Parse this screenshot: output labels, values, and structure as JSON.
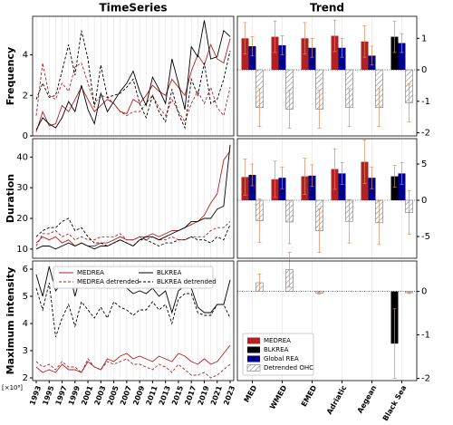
{
  "chart_data": [
    {
      "type": "line",
      "title": "TimeSeries",
      "ylabel": "Frequency",
      "x": [
        1993,
        1994,
        1995,
        1996,
        1997,
        1998,
        1999,
        2000,
        2001,
        2002,
        2003,
        2004,
        2005,
        2006,
        2007,
        2008,
        2009,
        2010,
        2011,
        2012,
        2013,
        2014,
        2015,
        2016,
        2017,
        2018,
        2019,
        2020,
        2021,
        2022,
        2023
      ],
      "series": [
        {
          "color": "#b22222",
          "linestyle": "solid",
          "values": [
            0.2,
            1.2,
            0.5,
            0.6,
            1.5,
            1.2,
            1.8,
            2.4,
            1.8,
            1.2,
            1.5,
            1.8,
            1.6,
            1.2,
            1.1,
            1.8,
            1.6,
            2.0,
            2.5,
            2.2,
            2.0,
            2.8,
            2.4,
            2.0,
            3.2,
            4.0,
            3.5,
            4.5,
            3.8,
            3.6,
            4.8
          ]
        },
        {
          "color": "#b22222",
          "linestyle": "dashed",
          "values": [
            1.0,
            3.6,
            2.0,
            1.8,
            2.6,
            2.2,
            3.4,
            3.6,
            2.6,
            1.6,
            2.0,
            1.9,
            1.6,
            1.2,
            1.0,
            1.2,
            1.2,
            1.6,
            2.0,
            1.4,
            1.0,
            1.8,
            1.2,
            0.7,
            1.6,
            2.2,
            1.6,
            2.4,
            1.4,
            1.0,
            2.4
          ]
        },
        {
          "color": "#000000",
          "linestyle": "solid",
          "values": [
            0.3,
            0.9,
            0.6,
            0.4,
            0.9,
            1.7,
            1.2,
            2.5,
            1.3,
            0.6,
            2.1,
            1.2,
            1.7,
            2.2,
            2.6,
            3.2,
            2.2,
            1.5,
            2.9,
            2.3,
            1.6,
            3.8,
            2.6,
            1.3,
            4.4,
            3.9,
            5.7,
            3.8,
            3.9,
            5.2,
            4.9
          ]
        },
        {
          "color": "#000000",
          "linestyle": "dashed",
          "values": [
            1.8,
            2.6,
            1.9,
            2.0,
            3.2,
            4.5,
            3.0,
            5.2,
            3.8,
            1.4,
            3.5,
            1.9,
            2.0,
            2.1,
            2.4,
            2.8,
            1.6,
            0.9,
            2.0,
            1.2,
            0.7,
            2.3,
            1.1,
            0.4,
            2.8,
            2.0,
            3.6,
            1.6,
            1.8,
            2.8,
            4.2
          ]
        }
      ],
      "ylim": [
        0,
        5.9
      ],
      "yticks": [
        0,
        2,
        4
      ],
      "grid": true
    },
    {
      "type": "bar",
      "title": "Trend",
      "series": [
        {
          "color": "#b22222",
          "values": [
            1.0,
            1.05,
            1.0,
            1.08,
            0.9,
            null
          ],
          "errors": [
            0.5,
            0.5,
            0.5,
            0.5,
            0.5,
            null
          ]
        },
        {
          "color": "#000000",
          "values": [
            null,
            null,
            null,
            null,
            null,
            1.05
          ],
          "errors": [
            null,
            null,
            null,
            null,
            null,
            0.5
          ]
        },
        {
          "color": "#00008b",
          "values": [
            0.75,
            0.78,
            0.7,
            0.7,
            0.45,
            0.85
          ],
          "errors": [
            0.3,
            0.3,
            0.3,
            0.3,
            0.3,
            0.3
          ]
        },
        {
          "color": "#ffffff",
          "hatch": true,
          "values": [
            -1.2,
            -1.25,
            -1.25,
            -1.2,
            -1.2,
            -1.05
          ],
          "errors": [
            0.6,
            0.6,
            0.6,
            0.6,
            0.6,
            0.6
          ]
        }
      ],
      "ylim": [
        -2.1,
        1.7
      ],
      "yticks": [
        -2,
        -1,
        0,
        1
      ],
      "grid": true
    },
    {
      "type": "line",
      "ylabel": "Duration",
      "x": [
        1993,
        1994,
        1995,
        1996,
        1997,
        1998,
        1999,
        2000,
        2001,
        2002,
        2003,
        2004,
        2005,
        2006,
        2007,
        2008,
        2009,
        2010,
        2011,
        2012,
        2013,
        2014,
        2015,
        2016,
        2017,
        2018,
        2019,
        2020,
        2021,
        2022,
        2023
      ],
      "series": [
        {
          "color": "#b22222",
          "linestyle": "solid",
          "values": [
            12,
            14,
            13,
            14,
            12,
            13,
            11,
            12,
            11,
            11,
            12,
            12,
            13,
            14,
            13,
            13,
            14,
            14,
            15,
            14,
            15,
            16,
            16,
            17,
            18,
            19,
            21,
            25,
            28,
            39,
            42
          ]
        },
        {
          "color": "#b22222",
          "linestyle": "dashed",
          "values": [
            11,
            15,
            15,
            16,
            14,
            15,
            13,
            14,
            13,
            13,
            14,
            14,
            14,
            15,
            13,
            13,
            14,
            13,
            14,
            13,
            13,
            14,
            13,
            13,
            14,
            14,
            14,
            16,
            17,
            17,
            19
          ]
        },
        {
          "color": "#000000",
          "linestyle": "solid",
          "values": [
            10,
            11,
            11,
            10,
            11,
            12,
            11,
            12,
            11,
            10,
            11,
            11,
            12,
            13,
            12,
            11,
            13,
            14,
            14,
            13,
            14,
            15,
            16,
            17,
            19,
            19,
            20,
            20,
            23,
            24,
            44
          ]
        },
        {
          "color": "#000000",
          "linestyle": "dashed",
          "values": [
            14,
            16,
            17,
            17,
            19,
            20,
            16,
            17,
            14,
            12,
            12,
            11,
            12,
            13,
            12,
            11,
            13,
            13,
            12,
            11,
            12,
            12,
            13,
            13,
            14,
            13,
            13,
            12,
            14,
            13,
            18
          ]
        }
      ],
      "ylim": [
        7,
        46
      ],
      "yticks": [
        10,
        20,
        30,
        40
      ],
      "grid": true
    },
    {
      "type": "bar",
      "series": [
        {
          "color": "#b22222",
          "values": [
            3.2,
            2.9,
            3.3,
            4.3,
            5.3,
            null
          ],
          "errors": [
            2.5,
            2.5,
            2.5,
            2.8,
            3.0,
            null
          ]
        },
        {
          "color": "#000000",
          "values": [
            null,
            null,
            null,
            null,
            null,
            3.3
          ],
          "errors": [
            null,
            null,
            null,
            null,
            null,
            1.5
          ]
        },
        {
          "color": "#00008b",
          "values": [
            3.5,
            3.1,
            3.4,
            3.7,
            3.1,
            3.7
          ],
          "errors": [
            1.5,
            1.5,
            1.5,
            1.5,
            1.5,
            1.5
          ]
        },
        {
          "color": "#ffffff",
          "hatch": true,
          "values": [
            -2.8,
            -3.0,
            -4.2,
            -2.9,
            -3.1,
            -1.7
          ],
          "errors": [
            3.0,
            3.0,
            3.0,
            3.0,
            3.0,
            3.0
          ]
        }
      ],
      "ylim": [
        -8,
        8.5
      ],
      "yticks": [
        -5,
        0,
        5
      ],
      "grid": true
    },
    {
      "type": "line",
      "ylabel": "Maximum intensity",
      "y_scale_label": "[×10⁸]",
      "x": [
        1993,
        1994,
        1995,
        1996,
        1997,
        1998,
        1999,
        2000,
        2001,
        2002,
        2003,
        2004,
        2005,
        2006,
        2007,
        2008,
        2009,
        2010,
        2011,
        2012,
        2013,
        2014,
        2015,
        2016,
        2017,
        2018,
        2019,
        2020,
        2021,
        2022,
        2023
      ],
      "xticks": [
        1993,
        1995,
        1997,
        1999,
        2001,
        2003,
        2005,
        2007,
        2009,
        2011,
        2013,
        2015,
        2017,
        2019,
        2021,
        2023
      ],
      "series": [
        {
          "name": "MEDREA",
          "color": "#b22222",
          "linestyle": "solid",
          "values": [
            2.4,
            2.2,
            2.3,
            2.2,
            2.5,
            2.3,
            2.3,
            2.2,
            2.6,
            2.4,
            2.3,
            2.7,
            2.6,
            2.8,
            2.9,
            2.7,
            2.8,
            2.7,
            2.6,
            2.8,
            2.7,
            2.6,
            2.9,
            2.8,
            2.6,
            2.5,
            2.7,
            2.5,
            2.6,
            2.9,
            3.2
          ]
        },
        {
          "name": "MEDREA detrended",
          "color": "#b22222",
          "linestyle": "dashed",
          "values": [
            2.6,
            2.4,
            2.5,
            2.3,
            2.6,
            2.4,
            2.4,
            2.2,
            2.7,
            2.4,
            2.3,
            2.6,
            2.5,
            2.6,
            2.7,
            2.5,
            2.5,
            2.4,
            2.3,
            2.5,
            2.4,
            2.2,
            2.5,
            2.3,
            2.1,
            2.1,
            2.2,
            2.0,
            2.1,
            2.3,
            2.5
          ]
        },
        {
          "name": "BLKREA",
          "color": "#000000",
          "linestyle": "solid",
          "values": [
            5.8,
            5.0,
            6.1,
            5.2,
            5.5,
            6.0,
            5.0,
            5.9,
            5.6,
            5.4,
            5.7,
            5.3,
            5.8,
            5.5,
            5.3,
            5.1,
            5.2,
            5.1,
            5.3,
            5.0,
            5.2,
            4.4,
            5.2,
            5.4,
            5.3,
            4.6,
            4.4,
            4.4,
            4.7,
            4.7,
            5.6
          ]
        },
        {
          "name": "BLKREA detrended",
          "color": "#000000",
          "linestyle": "dashed",
          "values": [
            5.3,
            4.5,
            5.5,
            3.5,
            4.2,
            4.7,
            3.9,
            4.8,
            4.5,
            4.2,
            4.6,
            4.2,
            4.8,
            4.6,
            4.5,
            4.3,
            4.5,
            4.5,
            4.8,
            4.5,
            4.7,
            4.0,
            4.9,
            5.1,
            5.1,
            4.4,
            4.3,
            4.3,
            4.7,
            4.7,
            4.2
          ]
        }
      ],
      "ylim": [
        1.9,
        6.3
      ],
      "yticks": [
        2,
        3,
        4,
        5,
        6
      ],
      "grid": true,
      "legend": "upper center"
    },
    {
      "type": "bar",
      "categories": [
        "MED",
        "WMED",
        "EMED",
        "Adriatic",
        "Aegean",
        "Black Sea"
      ],
      "series": [
        {
          "name": "MEDREA",
          "color": "#b22222",
          "values": [
            null,
            null,
            null,
            null,
            null,
            null
          ],
          "errors": [
            null,
            null,
            null,
            null,
            null,
            null
          ]
        },
        {
          "name": "BLKREA",
          "color": "#000000",
          "values": [
            null,
            null,
            null,
            null,
            null,
            -1.2
          ],
          "errors": [
            null,
            null,
            null,
            null,
            null,
            0.8
          ]
        },
        {
          "name": "Global REA",
          "color": "#00008b",
          "values": [
            null,
            null,
            null,
            null,
            null,
            null
          ],
          "errors": [
            null,
            null,
            null,
            null,
            null,
            null
          ]
        },
        {
          "name": "Detrended OHC",
          "color": "#ffffff",
          "hatch": true,
          "values": [
            0.2,
            0.5,
            -0.04,
            null,
            null,
            -0.03
          ],
          "errors": [
            0.2,
            0.4,
            0.02,
            null,
            null,
            0.02
          ]
        }
      ],
      "ylim": [
        -2.05,
        0.7
      ],
      "yticks": [
        -2,
        -1,
        0
      ],
      "grid": true,
      "legend": "lower left"
    }
  ]
}
